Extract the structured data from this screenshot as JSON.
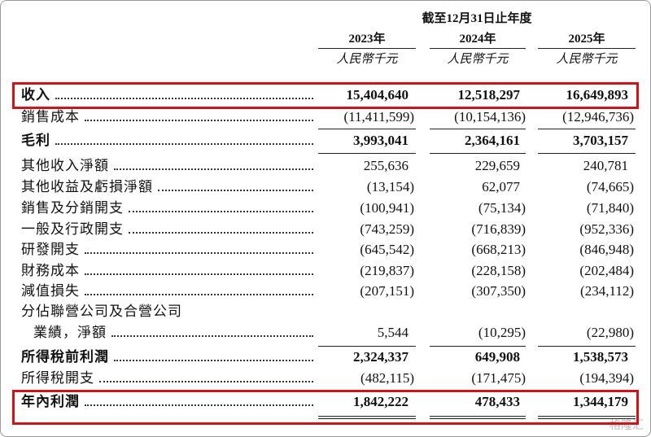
{
  "header": {
    "period": "截至12月31日止年度",
    "years": [
      "2023年",
      "2024年",
      "2025年"
    ],
    "units": [
      "人民幣千元",
      "人民幣千元",
      "人民幣千元"
    ]
  },
  "rows": [
    {
      "label": [
        "收入"
      ],
      "values": [
        "15,404,640",
        "12,518,297",
        "16,649,893"
      ]
    },
    {
      "label": [
        "銷售成本"
      ],
      "values": [
        "(11,411,599)",
        "(10,154,136)",
        "(12,946,736)"
      ]
    },
    {
      "label": [
        "毛利"
      ],
      "values": [
        "3,993,041",
        "2,364,161",
        "3,703,157"
      ]
    },
    {
      "label": [
        "其他收入淨額"
      ],
      "values": [
        "255,636",
        "229,659",
        "240,781"
      ]
    },
    {
      "label": [
        "其他收益及虧損淨額"
      ],
      "values": [
        "(13,154)",
        "62,077",
        "(74,665)"
      ]
    },
    {
      "label": [
        "銷售及分銷開支"
      ],
      "values": [
        "(100,941)",
        "(75,134)",
        "(71,840)"
      ]
    },
    {
      "label": [
        "一般及行政開支"
      ],
      "values": [
        "(743,259)",
        "(716,839)",
        "(952,336)"
      ]
    },
    {
      "label": [
        "研發開支"
      ],
      "values": [
        "(645,542)",
        "(668,213)",
        "(846,948)"
      ]
    },
    {
      "label": [
        "財務成本"
      ],
      "values": [
        "(219,837)",
        "(228,158)",
        "(202,484)"
      ]
    },
    {
      "label": [
        "減值損失"
      ],
      "values": [
        "(207,151)",
        "(307,350)",
        "(234,112)"
      ]
    },
    {
      "label": [
        "分佔聯營公司及合營公司",
        "業績，淨額"
      ],
      "values": [
        "5,544",
        "(10,295)",
        "(22,980)"
      ]
    },
    {
      "label": [
        "所得稅前利潤"
      ],
      "values": [
        "2,324,337",
        "649,908",
        "1,538,573"
      ]
    },
    {
      "label": [
        "所得稅開支"
      ],
      "values": [
        "(482,115)",
        "(171,475)",
        "(194,394)"
      ]
    },
    {
      "label": [
        "年內利潤"
      ],
      "values": [
        "1,842,222",
        "478,433",
        "1,344,179"
      ]
    }
  ],
  "watermark": "格隆汇"
}
